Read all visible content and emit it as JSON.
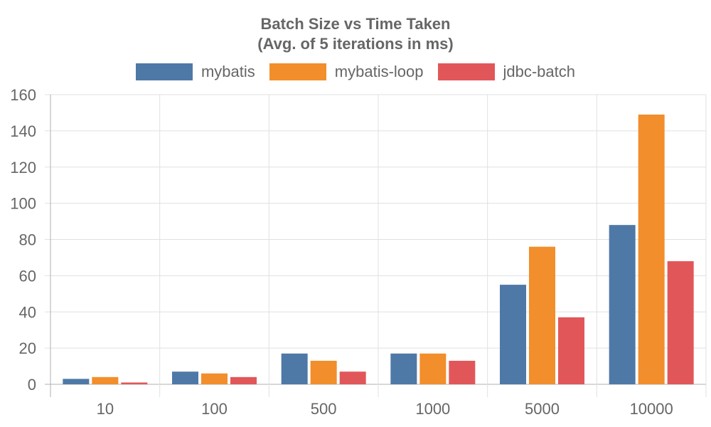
{
  "chart_data": {
    "type": "bar",
    "title_lines": [
      "Batch Size vs Time Taken",
      "(Avg. of 5 iterations in ms)"
    ],
    "categories": [
      "10",
      "100",
      "500",
      "1000",
      "5000",
      "10000"
    ],
    "series": [
      {
        "name": "mybatis",
        "color": "#4e79a7",
        "values": [
          3,
          7,
          17,
          17,
          55,
          88
        ]
      },
      {
        "name": "mybatis-loop",
        "color": "#f28e2b",
        "values": [
          4,
          6,
          13,
          17,
          76,
          149
        ]
      },
      {
        "name": "jdbc-batch",
        "color": "#e15759",
        "values": [
          1,
          4,
          7,
          13,
          37,
          68
        ]
      }
    ],
    "ylim": [
      0,
      160
    ],
    "yticks": [
      0,
      20,
      40,
      60,
      80,
      100,
      120,
      140,
      160
    ],
    "grid": true,
    "legend_position": "top"
  }
}
